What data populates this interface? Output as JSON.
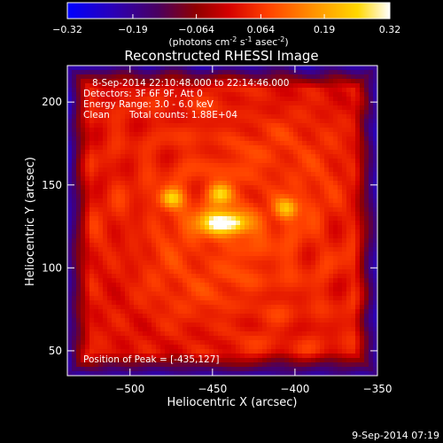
{
  "colorbar": {
    "ticks": [
      "-0.32",
      "-0.19",
      "-0.064",
      "0.064",
      "0.19",
      "0.32"
    ],
    "range": [
      -0.32,
      0.32
    ],
    "unit_label": {
      "prefix": "(photons cm",
      "exp1": "-2",
      "mid1": " s",
      "exp2": "-1",
      "mid2": " asec",
      "exp3": "-2",
      "suffix": ")"
    }
  },
  "chart_data": {
    "type": "heatmap",
    "title": "Reconstructed RHESSI Image",
    "xlabel": "Heliocentric X (arcsec)",
    "ylabel": "Heliocentric Y (arcsec)",
    "xlim": [
      -538,
      -350
    ],
    "ylim": [
      35,
      222
    ],
    "x_ticks": [
      -500,
      -450,
      -400,
      -350
    ],
    "x_tick_labels": [
      "−500",
      "−450",
      "−400",
      "−350"
    ],
    "y_ticks": [
      50,
      100,
      150,
      200
    ],
    "y_tick_labels": [
      "50",
      "100",
      "150",
      "200"
    ],
    "colormap": "hot",
    "annotations": [
      "8-Sep-2014 22:10:48.000 to 22:14:46.000",
      "Detectors: 3F 6F 9F, Att 0",
      "Energy Range: 3.0 - 6.0 keV",
      "Clean",
      "Total counts: 1.88E+04",
      "Position of Peak = [-435,127]"
    ],
    "peak": {
      "x": -435,
      "y": 127
    },
    "sources": [
      {
        "x": -443,
        "y": 127,
        "peak": 0.32
      },
      {
        "x": -475,
        "y": 142,
        "peak": 0.2
      },
      {
        "x": -445,
        "y": 145,
        "peak": 0.17
      },
      {
        "x": -405,
        "y": 136,
        "peak": 0.17
      }
    ]
  },
  "footer": {
    "timestamp": "9-Sep-2014 07:19"
  }
}
